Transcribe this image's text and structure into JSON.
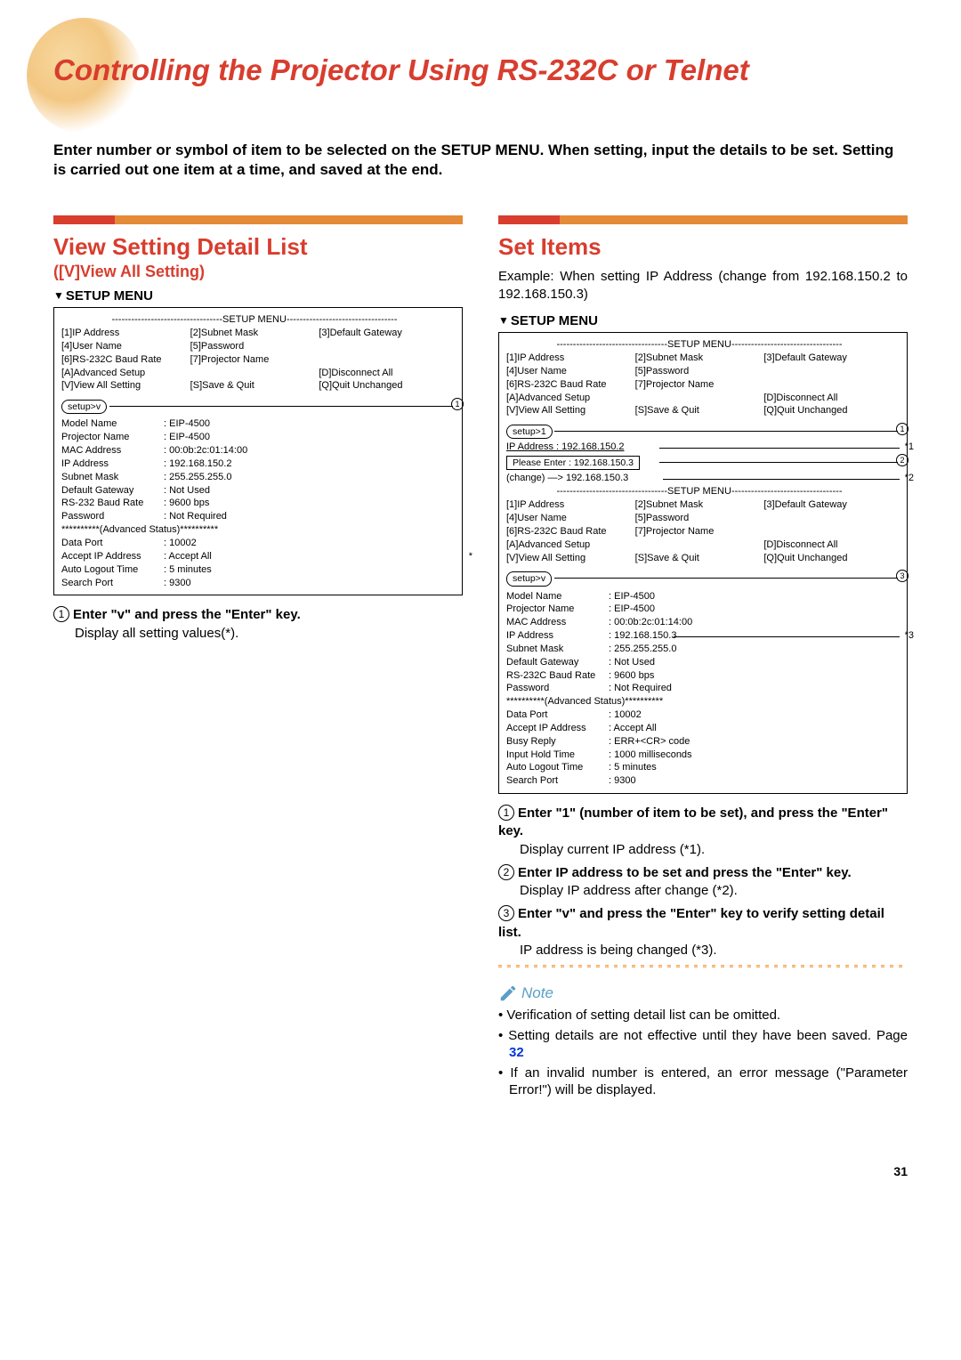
{
  "colors": {
    "accent": "#d83d2e",
    "accent2": "#e48a38",
    "note": "#5a9fc7",
    "link": "#0038d8"
  },
  "pageTitle": "Controlling the Projector Using RS-232C or Telnet",
  "intro": "Enter number or symbol of item to be selected on the SETUP MENU. When setting, input the details to be set. Setting is carried out one item at a time, and saved at the end.",
  "left": {
    "heading": "View Setting Detail List",
    "sub": "([V]View All Setting)",
    "setupLabel": "SETUP MENU",
    "menu": {
      "head": "----------------------------------SETUP MENU----------------------------------",
      "rows": [
        [
          "[1]IP Address",
          "[2]Subnet Mask",
          "[3]Default Gateway"
        ],
        [
          "[4]User Name",
          "[5]Password",
          ""
        ],
        [
          "[6]RS-232C Baud Rate",
          "[7]Projector Name",
          ""
        ],
        [
          "[A]Advanced Setup",
          "",
          "[D]Disconnect All"
        ],
        [
          "[V]View All Setting",
          "[S]Save & Quit",
          "[Q]Quit Unchanged"
        ]
      ],
      "prompt": "setup>v",
      "details": [
        [
          "Model Name",
          "EIP-4500"
        ],
        [
          "Projector Name",
          "EIP-4500"
        ],
        [
          "MAC Address",
          "00:0b:2c:01:14:00"
        ],
        [
          "IP Address",
          "192.168.150.2"
        ],
        [
          "Subnet Mask",
          "255.255.255.0"
        ],
        [
          "Default Gateway",
          "Not Used"
        ],
        [
          "RS-232 Baud Rate",
          "9600 bps"
        ],
        [
          "Password",
          "Not Required"
        ]
      ],
      "advhead": "**********(Advanced Status)**********",
      "details2": [
        [
          "Data Port",
          "10002"
        ],
        [
          "Accept IP Address",
          "Accept All"
        ],
        [
          "Auto Logout Time",
          "5 minutes"
        ],
        [
          "Search Port",
          "9300"
        ]
      ]
    },
    "instr": {
      "num": "1",
      "title": "Enter \"v\" and press the \"Enter\" key.",
      "body": "Display all setting values(*)."
    }
  },
  "right": {
    "heading": "Set Items",
    "example": "Example: When setting IP Address (change from 192.168.150.2 to 192.168.150.3)",
    "setupLabel": "SETUP MENU",
    "menu": {
      "head": "----------------------------------SETUP MENU----------------------------------",
      "rows": [
        [
          "[1]IP Address",
          "[2]Subnet Mask",
          "[3]Default Gateway"
        ],
        [
          "[4]User Name",
          "[5]Password",
          ""
        ],
        [
          "[6]RS-232C Baud Rate",
          "[7]Projector Name",
          ""
        ],
        [
          "[A]Advanced Setup",
          "",
          "[D]Disconnect All"
        ],
        [
          "[V]View All Setting",
          "[S]Save & Quit",
          "[Q]Quit Unchanged"
        ]
      ],
      "prompt1": "setup>1",
      "iprow": "IP Address          : 192.168.150.2",
      "please": "Please Enter     : 192.168.150.3",
      "change": "(change)       —>   192.168.150.3",
      "head2": "----------------------------------SETUP MENU----------------------------------",
      "rows2": [
        [
          "[1]IP Address",
          "[2]Subnet Mask",
          "[3]Default Gateway"
        ],
        [
          "[4]User Name",
          "[5]Password",
          ""
        ],
        [
          "[6]RS-232C Baud Rate",
          "[7]Projector Name",
          ""
        ],
        [
          "[A]Advanced Setup",
          "",
          "[D]Disconnect All"
        ],
        [
          "[V]View All Setting",
          "[S]Save & Quit",
          "[Q]Quit Unchanged"
        ]
      ],
      "prompt2": "setup>v",
      "details": [
        [
          "Model Name",
          "EIP-4500"
        ],
        [
          "Projector Name",
          "EIP-4500"
        ],
        [
          "MAC Address",
          "00:0b:2c:01:14:00"
        ],
        [
          "IP Address",
          "192.168.150.3"
        ],
        [
          "Subnet Mask",
          "255.255.255.0"
        ],
        [
          "Default Gateway",
          "Not Used"
        ],
        [
          "RS-232C Baud Rate",
          "9600 bps"
        ],
        [
          "Password",
          "Not Required"
        ]
      ],
      "advhead": "**********(Advanced Status)**********",
      "details2": [
        [
          "Data Port",
          "10002"
        ],
        [
          "Accept IP Address",
          "Accept All"
        ],
        [
          "Busy Reply",
          "ERR+<CR> code"
        ],
        [
          "Input Hold Time",
          "1000 milliseconds"
        ],
        [
          "Auto Logout Time",
          "5 minutes"
        ],
        [
          "Search Port",
          "9300"
        ]
      ]
    },
    "instructions": [
      {
        "num": "1",
        "title": "Enter \"1\" (number of item to be set), and press the \"Enter\" key.",
        "body": "Display current IP address (*1)."
      },
      {
        "num": "2",
        "title": "Enter IP address to be set and press the \"Enter\" key.",
        "body": "Display IP address after change (*2)."
      },
      {
        "num": "3",
        "title": "Enter \"v\" and press the \"Enter\" key to verify setting detail list.",
        "body": "IP address is being changed (*3)."
      }
    ],
    "noteLabel": "Note",
    "notes": [
      "Verification of setting detail list can be omitted.",
      "Setting details are not effective until they have been saved. Page ",
      "If an invalid number is entered, an error message (\"Parameter Error!\") will be displayed."
    ],
    "notePageLink": "32"
  },
  "pageNumber": "31"
}
